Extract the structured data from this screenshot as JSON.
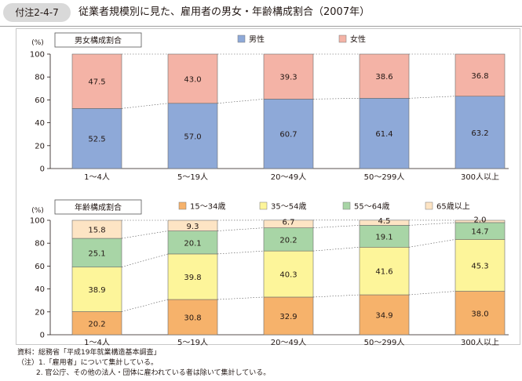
{
  "header": {
    "tag": "付注2-4-7",
    "title": "従業者規模別に見た、雇用者の男女・年齢構成割合（2007年）"
  },
  "chart_data": [
    {
      "type": "bar",
      "stacked": true,
      "title": "男女構成割合",
      "y_unit": "(%)",
      "ylim": [
        0,
        100
      ],
      "yticks": [
        "0",
        "20",
        "40",
        "60",
        "80",
        "100"
      ],
      "categories": [
        "1～4人",
        "5～19人",
        "20～49人",
        "50～299人",
        "300人以上"
      ],
      "series": [
        {
          "name": "男性",
          "color": "#8ea9d8",
          "values": [
            52.5,
            57.0,
            60.7,
            61.4,
            63.2
          ]
        },
        {
          "name": "女性",
          "color": "#f4b3a6",
          "values": [
            47.5,
            43.0,
            39.3,
            38.6,
            36.8
          ]
        }
      ],
      "legend": "top",
      "grid": false
    },
    {
      "type": "bar",
      "stacked": true,
      "title": "年齢構成割合",
      "y_unit": "(%)",
      "ylim": [
        0,
        100
      ],
      "yticks": [
        "0",
        "20",
        "40",
        "60",
        "80",
        "100"
      ],
      "categories": [
        "1～4人",
        "5～19人",
        "20～49人",
        "50～299人",
        "300人以上"
      ],
      "series": [
        {
          "name": "15～34歳",
          "color": "#f6b26b",
          "values": [
            20.2,
            30.8,
            32.9,
            34.9,
            38.0
          ]
        },
        {
          "name": "35～54歳",
          "color": "#fdf59a",
          "values": [
            38.9,
            39.8,
            40.3,
            41.6,
            45.3
          ]
        },
        {
          "name": "55～64歳",
          "color": "#a8d5a6",
          "values": [
            25.1,
            20.1,
            20.2,
            19.1,
            14.7
          ]
        },
        {
          "name": "65歳以上",
          "color": "#fde4c4",
          "values": [
            15.8,
            9.3,
            6.7,
            4.5,
            2.0
          ]
        }
      ],
      "legend": "top",
      "grid": false
    }
  ],
  "notes": [
    "資料：総務省「平成19年就業構造基本調査」",
    "（注）1.「雇用者」について集計している。",
    "2. 官公庁、その他の法人・団体に雇われている者は除いて集計している。"
  ]
}
